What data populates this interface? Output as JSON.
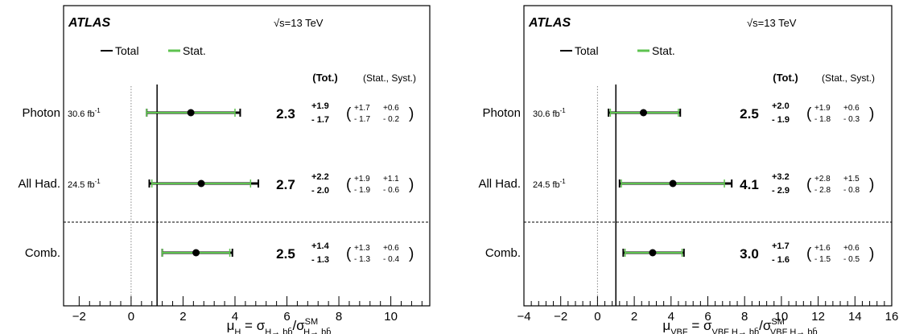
{
  "chart_data": [
    {
      "type": "forest",
      "experiment": "ATLAS",
      "energy_label": "13 TeV",
      "legend": {
        "total": "Total",
        "stat": "Stat."
      },
      "column_headers": {
        "tot": "(Tot.)",
        "stat_syst": "(Stat., Syst.)"
      },
      "xlim": [
        -2.6,
        11.5
      ],
      "xticks": [
        -2,
        0,
        2,
        4,
        6,
        8,
        10
      ],
      "xlabel": "μ_H = σ_{H→ bb̄} / σ^{SM}_{H→ bb̄}",
      "sm_value": 1,
      "zero_line": 0,
      "rows": [
        {
          "label": "Photon",
          "lumi": "30.6 fb",
          "value": 2.3,
          "value_label": "2.3",
          "tot_up": "+1.9",
          "tot_dn": "- 1.7",
          "stat_up": "+1.7",
          "stat_dn": "- 1.7",
          "syst_up": "+0.6",
          "syst_dn": "- 0.2",
          "tot_lo": 0.6,
          "tot_hi": 4.2,
          "stat_lo": 0.6,
          "stat_hi": 4.0
        },
        {
          "label": "All Had.",
          "lumi": "24.5 fb",
          "value": 2.7,
          "value_label": "2.7",
          "tot_up": "+2.2",
          "tot_dn": "- 2.0",
          "stat_up": "+1.9",
          "stat_dn": "- 1.9",
          "syst_up": "+1.1",
          "syst_dn": "- 0.6",
          "tot_lo": 0.7,
          "tot_hi": 4.9,
          "stat_lo": 0.8,
          "stat_hi": 4.6
        },
        {
          "label": "Comb.",
          "lumi": "",
          "value": 2.5,
          "value_label": "2.5",
          "tot_up": "+1.4",
          "tot_dn": "- 1.3",
          "stat_up": "+1.3",
          "stat_dn": "- 1.3",
          "syst_up": "+0.6",
          "syst_dn": "- 0.4",
          "tot_lo": 1.2,
          "tot_hi": 3.9,
          "stat_lo": 1.2,
          "stat_hi": 3.8
        }
      ]
    },
    {
      "type": "forest",
      "experiment": "ATLAS",
      "energy_label": "13 TeV",
      "legend": {
        "total": "Total",
        "stat": "Stat."
      },
      "column_headers": {
        "tot": "(Tot.)",
        "stat_syst": "(Stat., Syst.)"
      },
      "xlim": [
        -4,
        16
      ],
      "xticks": [
        -4,
        -2,
        0,
        2,
        4,
        6,
        8,
        10,
        12,
        14,
        16
      ],
      "xlabel": "μ_VBF = σ_{VBF H→ bb̄} / σ^{SM}_{VBF H→ bb̄}",
      "sm_value": 1,
      "zero_line": 0,
      "rows": [
        {
          "label": "Photon",
          "lumi": "30.6 fb",
          "value": 2.5,
          "value_label": "2.5",
          "tot_up": "+2.0",
          "tot_dn": "- 1.9",
          "stat_up": "+1.9",
          "stat_dn": "- 1.8",
          "syst_up": "+0.6",
          "syst_dn": "- 0.3",
          "tot_lo": 0.6,
          "tot_hi": 4.5,
          "stat_lo": 0.7,
          "stat_hi": 4.4
        },
        {
          "label": "All Had.",
          "lumi": "24.5 fb",
          "value": 4.1,
          "value_label": "4.1",
          "tot_up": "+3.2",
          "tot_dn": "- 2.9",
          "stat_up": "+2.8",
          "stat_dn": "- 2.8",
          "syst_up": "+1.5",
          "syst_dn": "- 0.8",
          "tot_lo": 1.2,
          "tot_hi": 7.3,
          "stat_lo": 1.3,
          "stat_hi": 6.9
        },
        {
          "label": "Comb.",
          "lumi": "",
          "value": 3.0,
          "value_label": "3.0",
          "tot_up": "+1.7",
          "tot_dn": "- 1.6",
          "stat_up": "+1.6",
          "stat_dn": "- 1.5",
          "syst_up": "+0.6",
          "syst_dn": "- 0.5",
          "tot_lo": 1.4,
          "tot_hi": 4.7,
          "stat_lo": 1.5,
          "stat_hi": 4.6
        }
      ]
    }
  ]
}
